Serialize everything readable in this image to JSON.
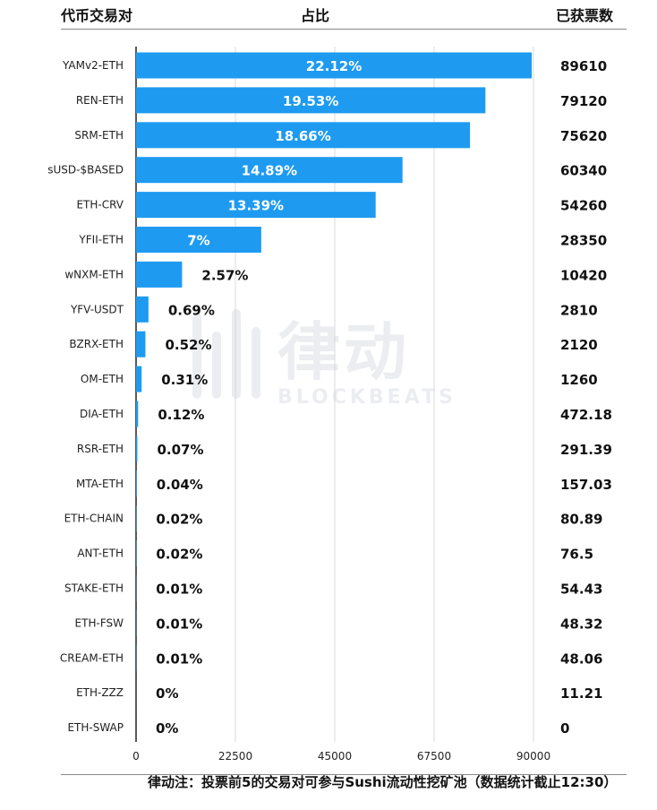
{
  "header": {
    "col_pair": "代币交易对",
    "col_share": "占比",
    "col_votes": "已获票数"
  },
  "watermark": {
    "cn": "律动",
    "en": "BLOCKBEATS"
  },
  "footer": {
    "note": "律动注：投票前5的交易对可参与Sushi流动性挖矿池（数据统计截止12:30）"
  },
  "chart_data": {
    "type": "bar",
    "orientation": "horizontal",
    "categories": [
      "YAMv2-ETH",
      "REN-ETH",
      "SRM-ETH",
      "sUSD-$BASED",
      "ETH-CRV",
      "YFII-ETH",
      "wNXM-ETH",
      "YFV-USDT",
      "BZRX-ETH",
      "OM-ETH",
      "DIA-ETH",
      "RSR-ETH",
      "MTA-ETH",
      "ETH-CHAIN",
      "ANT-ETH",
      "STAKE-ETH",
      "ETH-FSW",
      "CREAM-ETH",
      "ETH-ZZZ",
      "ETH-SWAP"
    ],
    "values": [
      89610,
      79120,
      75620,
      60340,
      54260,
      28350,
      10420,
      2810,
      2120,
      1260,
      472.18,
      291.39,
      157.03,
      80.89,
      76.5,
      54.43,
      48.32,
      48.06,
      11.21,
      0
    ],
    "value_labels": [
      "89610",
      "79120",
      "75620",
      "60340",
      "54260",
      "28350",
      "10420",
      "2810",
      "2120",
      "1260",
      "472.18",
      "291.39",
      "157.03",
      "80.89",
      "76.5",
      "54.43",
      "48.32",
      "48.06",
      "11.21",
      "0"
    ],
    "percent_labels": [
      "22.12%",
      "19.53%",
      "18.66%",
      "14.89%",
      "13.39%",
      "7%",
      "2.57%",
      "0.69%",
      "0.52%",
      "0.31%",
      "0.12%",
      "0.07%",
      "0.04%",
      "0.02%",
      "0.02%",
      "0.01%",
      "0.01%",
      "0.01%",
      "0%",
      "0%"
    ],
    "xlim": [
      0,
      90000
    ],
    "xticks": [
      "0",
      "22500",
      "45000",
      "67500",
      "90000"
    ],
    "grid": true,
    "bar_color": "#1E9BF0"
  }
}
